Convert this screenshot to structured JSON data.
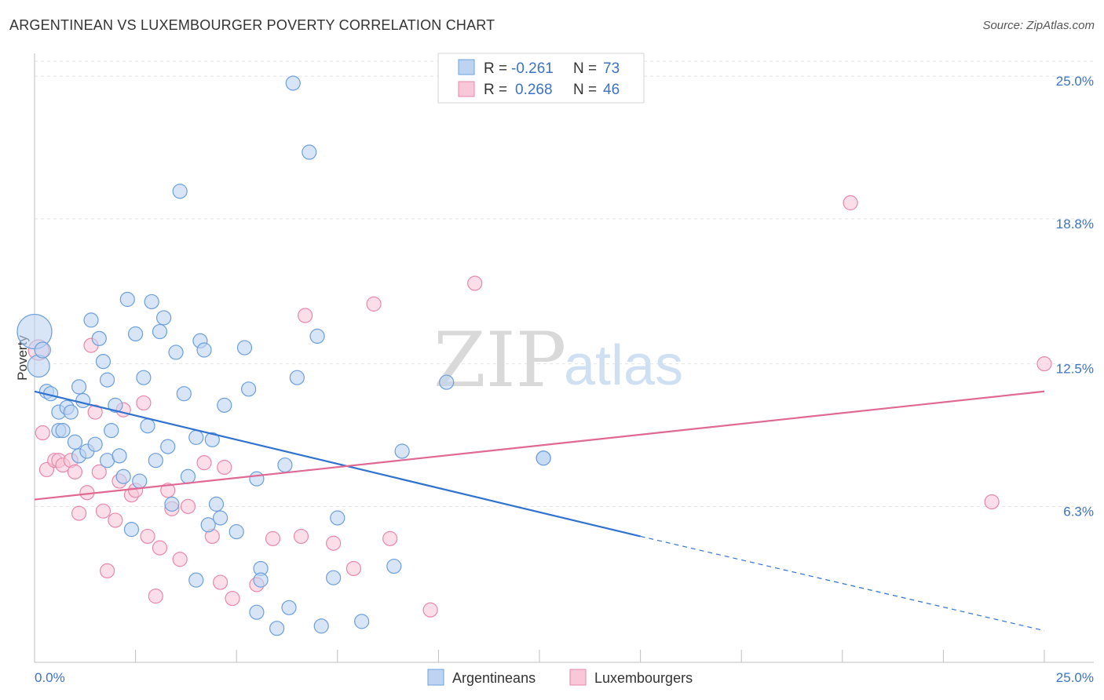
{
  "title": "ARGENTINEAN VS LUXEMBOURGER POVERTY CORRELATION CHART",
  "source": "Source: ZipAtlas.com",
  "watermark": {
    "part1": "ZIP",
    "part2": "atlas"
  },
  "colors": {
    "blue": "#6b9fdc",
    "blue_fill": "#bcd4f2",
    "blue_line": "#2f72d0",
    "pink": "#e888a8",
    "pink_fill": "#f8c8d8",
    "pink_line": "#e06892",
    "accent_text": "#3d72c4"
  },
  "legend": {
    "items": [
      {
        "r_label": "R =",
        "r_value": "-0.261",
        "n_label": "N =",
        "n_value": "73"
      },
      {
        "r_label": "R =",
        "r_value": "0.268",
        "n_label": "N =",
        "n_value": "46"
      }
    ]
  },
  "bottom_legend": [
    "Argentineans",
    "Luxembourgers"
  ],
  "chart_data": {
    "type": "scatter",
    "title": "ARGENTINEAN VS LUXEMBOURGER POVERTY CORRELATION CHART",
    "xlabel": "",
    "ylabel": "Poverty",
    "xlim": [
      0,
      25
    ],
    "ylim": [
      0,
      26.2
    ],
    "x_tick_labels": [
      "0.0%",
      "25.0%"
    ],
    "y_ticks": [
      6.3,
      12.5,
      18.8,
      25.0
    ],
    "y_tick_labels": [
      "6.3%",
      "12.5%",
      "18.8%",
      "25.0%"
    ],
    "grid": true,
    "legend_position": "top-center",
    "series": [
      {
        "name": "Argentineans",
        "R": -0.261,
        "N": 73,
        "trend": {
          "x": [
            0.0,
            15.0
          ],
          "y": [
            11.3,
            5.0
          ],
          "dashed_to": [
            25.0,
            0.9
          ]
        },
        "points": [
          [
            0.0,
            13.9,
            22
          ],
          [
            0.1,
            12.4,
            14
          ],
          [
            0.2,
            13.1,
            10
          ],
          [
            0.3,
            11.3,
            9
          ],
          [
            0.4,
            11.2,
            9
          ],
          [
            0.6,
            9.6,
            9
          ],
          [
            0.6,
            10.4,
            9
          ],
          [
            0.7,
            9.6,
            9
          ],
          [
            0.8,
            10.6,
            9
          ],
          [
            0.9,
            10.4,
            9
          ],
          [
            1.0,
            9.1,
            9
          ],
          [
            1.1,
            11.5,
            9
          ],
          [
            1.1,
            8.5,
            9
          ],
          [
            1.2,
            10.9,
            9
          ],
          [
            1.3,
            8.7,
            9
          ],
          [
            1.4,
            14.4,
            9
          ],
          [
            1.5,
            9.0,
            9
          ],
          [
            1.6,
            13.6,
            9
          ],
          [
            1.7,
            12.6,
            9
          ],
          [
            1.8,
            11.8,
            9
          ],
          [
            1.8,
            8.3,
            9
          ],
          [
            1.9,
            9.6,
            9
          ],
          [
            2.0,
            10.7,
            9
          ],
          [
            2.1,
            8.5,
            9
          ],
          [
            2.2,
            7.6,
            9
          ],
          [
            2.3,
            15.3,
            9
          ],
          [
            2.4,
            5.3,
            9
          ],
          [
            2.5,
            13.8,
            9
          ],
          [
            2.6,
            7.4,
            9
          ],
          [
            2.7,
            11.9,
            9
          ],
          [
            2.8,
            9.8,
            9
          ],
          [
            2.9,
            15.2,
            9
          ],
          [
            3.0,
            8.3,
            9
          ],
          [
            3.1,
            13.9,
            9
          ],
          [
            3.2,
            14.5,
            9
          ],
          [
            3.3,
            8.9,
            9
          ],
          [
            3.4,
            6.4,
            9
          ],
          [
            3.5,
            13.0,
            9
          ],
          [
            3.6,
            20.0,
            9
          ],
          [
            3.7,
            11.2,
            9
          ],
          [
            3.8,
            7.6,
            9
          ],
          [
            4.0,
            9.3,
            9
          ],
          [
            4.0,
            3.1,
            9
          ],
          [
            4.1,
            13.5,
            9
          ],
          [
            4.2,
            13.1,
            9
          ],
          [
            4.3,
            5.5,
            9
          ],
          [
            4.4,
            9.2,
            9
          ],
          [
            4.5,
            6.4,
            9
          ],
          [
            4.6,
            5.8,
            9
          ],
          [
            4.7,
            10.7,
            9
          ],
          [
            5.0,
            5.2,
            9
          ],
          [
            5.2,
            13.2,
            9
          ],
          [
            5.3,
            11.4,
            9
          ],
          [
            5.5,
            7.5,
            9
          ],
          [
            5.5,
            1.7,
            9
          ],
          [
            5.6,
            3.6,
            9
          ],
          [
            5.6,
            3.1,
            9
          ],
          [
            6.0,
            1.0,
            9
          ],
          [
            6.2,
            8.1,
            9
          ],
          [
            6.3,
            1.9,
            9
          ],
          [
            6.4,
            24.7,
            9
          ],
          [
            6.5,
            11.9,
            9
          ],
          [
            6.8,
            21.7,
            9
          ],
          [
            7.0,
            13.7,
            9
          ],
          [
            7.1,
            1.1,
            9
          ],
          [
            7.4,
            3.2,
            9
          ],
          [
            7.5,
            5.8,
            9
          ],
          [
            8.1,
            1.3,
            9
          ],
          [
            8.9,
            3.7,
            9
          ],
          [
            9.1,
            8.7,
            9
          ],
          [
            10.2,
            11.7,
            9
          ],
          [
            12.6,
            8.4,
            9
          ],
          [
            12.6,
            8.4,
            9
          ]
        ]
      },
      {
        "name": "Luxembourgers",
        "R": 0.268,
        "N": 46,
        "trend": {
          "x": [
            0.0,
            25.0
          ],
          "y": [
            6.6,
            11.3
          ]
        },
        "points": [
          [
            0.1,
            13.1,
            13
          ],
          [
            0.2,
            9.5,
            9
          ],
          [
            0.3,
            7.9,
            9
          ],
          [
            0.5,
            8.3,
            9
          ],
          [
            0.6,
            8.3,
            9
          ],
          [
            0.7,
            8.1,
            9
          ],
          [
            0.9,
            8.3,
            9
          ],
          [
            1.0,
            7.8,
            9
          ],
          [
            1.1,
            6.0,
            9
          ],
          [
            1.3,
            6.9,
            9
          ],
          [
            1.4,
            13.3,
            9
          ],
          [
            1.5,
            10.4,
            9
          ],
          [
            1.6,
            7.8,
            9
          ],
          [
            1.7,
            6.1,
            9
          ],
          [
            1.8,
            3.5,
            9
          ],
          [
            2.0,
            5.7,
            9
          ],
          [
            2.1,
            7.4,
            9
          ],
          [
            2.2,
            10.5,
            9
          ],
          [
            2.4,
            6.8,
            9
          ],
          [
            2.5,
            7.0,
            9
          ],
          [
            2.7,
            10.8,
            9
          ],
          [
            2.8,
            5.0,
            9
          ],
          [
            3.0,
            2.4,
            9
          ],
          [
            3.1,
            4.5,
            9
          ],
          [
            3.3,
            7.0,
            9
          ],
          [
            3.4,
            6.2,
            9
          ],
          [
            3.6,
            4.0,
            9
          ],
          [
            3.8,
            6.3,
            9
          ],
          [
            4.2,
            8.2,
            9
          ],
          [
            4.4,
            5.0,
            9
          ],
          [
            4.6,
            3.0,
            9
          ],
          [
            4.7,
            8.0,
            9
          ],
          [
            4.9,
            2.3,
            9
          ],
          [
            5.5,
            2.9,
            9
          ],
          [
            5.9,
            4.9,
            9
          ],
          [
            6.6,
            5.0,
            9
          ],
          [
            6.7,
            14.6,
            9
          ],
          [
            7.4,
            4.7,
            9
          ],
          [
            7.9,
            3.6,
            9
          ],
          [
            8.4,
            15.1,
            9
          ],
          [
            8.8,
            4.9,
            9
          ],
          [
            9.8,
            1.8,
            9
          ],
          [
            10.9,
            16.0,
            9
          ],
          [
            20.2,
            19.5,
            9
          ],
          [
            23.7,
            6.5,
            9
          ],
          [
            25.0,
            12.5,
            9
          ]
        ]
      }
    ]
  }
}
